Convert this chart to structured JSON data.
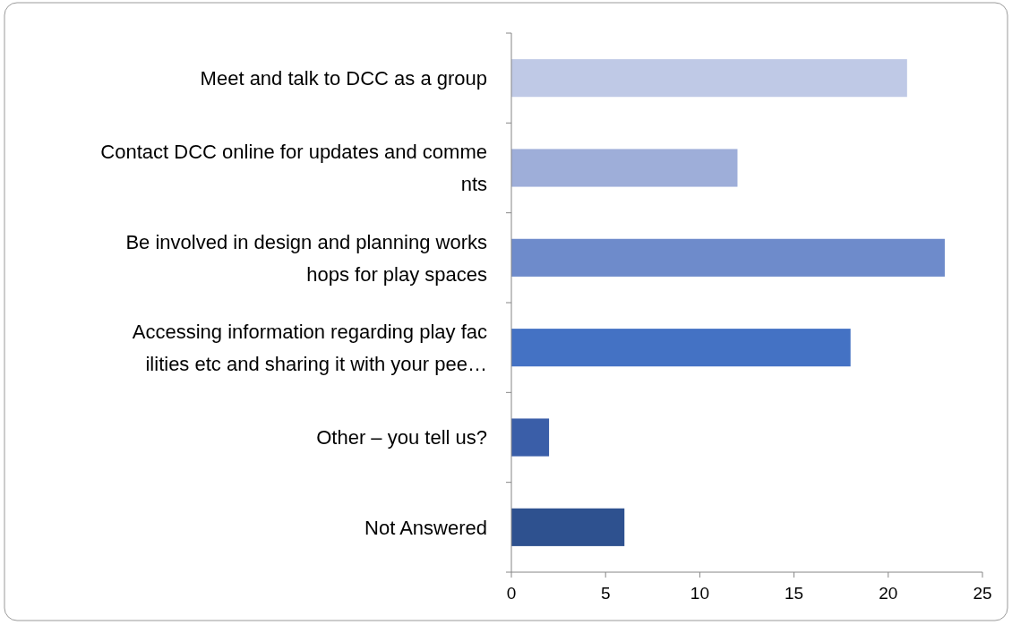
{
  "chart_data": {
    "type": "bar",
    "orientation": "horizontal",
    "categories": [
      "Meet and talk to DCC as a group",
      "Contact DCC online for updates and comme\nnts",
      "Be involved in design and planning works\nhops for play spaces",
      "Accessing information regarding play fac\nilities etc and sharing it with your pee…",
      "Other – you tell us?",
      "Not Answered"
    ],
    "values": [
      21,
      12,
      23,
      18,
      2,
      6
    ],
    "colors": [
      "#bfc9e6",
      "#9eaed9",
      "#6e8bcb",
      "#4472c4",
      "#3a5ea8",
      "#2e518f"
    ],
    "xlim": [
      0,
      25
    ],
    "xticks": [
      0,
      5,
      10,
      15,
      20,
      25
    ]
  }
}
